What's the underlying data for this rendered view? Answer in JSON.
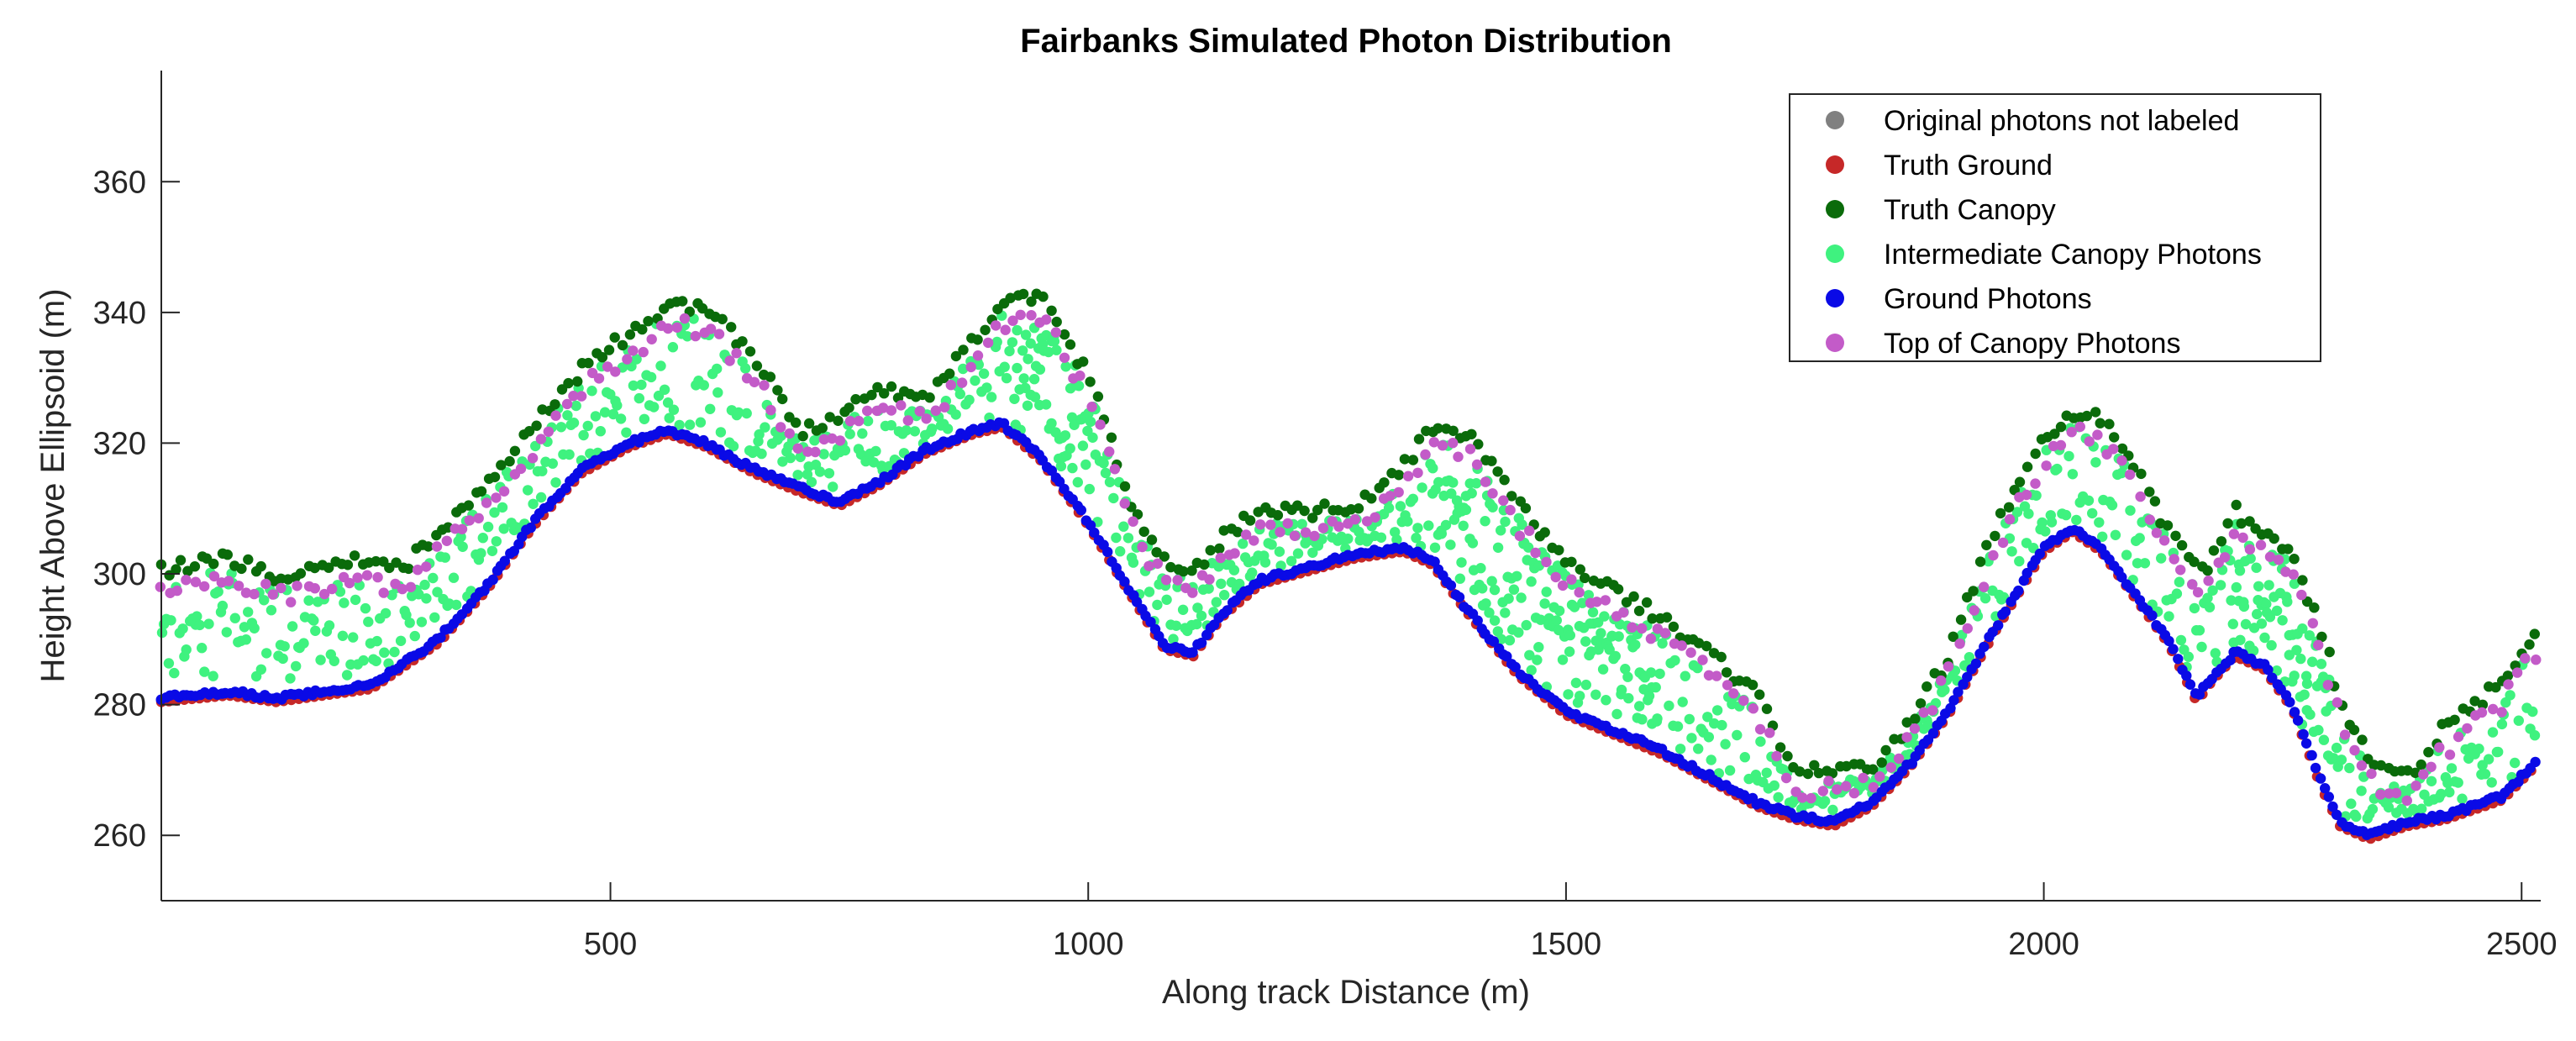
{
  "chart_data": {
    "type": "scatter",
    "title": "Fairbanks Simulated Photon Distribution",
    "xlabel": "Along track Distance (m)",
    "ylabel": "Height Above Ellipsoid (m)",
    "xlim": [
      30,
      2520
    ],
    "ylim": [
      250,
      377
    ],
    "xticks": [
      500,
      1000,
      1500,
      2000,
      2500
    ],
    "yticks": [
      260,
      280,
      300,
      320,
      340,
      360
    ],
    "grid": false,
    "legend_position": "top-right",
    "ground_profile": {
      "x": [
        30,
        100,
        150,
        200,
        250,
        280,
        320,
        370,
        420,
        470,
        520,
        560,
        600,
        650,
        700,
        740,
        780,
        830,
        880,
        910,
        950,
        1000,
        1050,
        1080,
        1110,
        1140,
        1180,
        1230,
        1280,
        1330,
        1360,
        1400,
        1450,
        1500,
        1550,
        1600,
        1650,
        1700,
        1740,
        1780,
        1820,
        1860,
        1900,
        1950,
        2000,
        2030,
        2060,
        2100,
        2130,
        2160,
        2175,
        2200,
        2230,
        2260,
        2290,
        2310,
        2340,
        2380,
        2420,
        2480,
        2520
      ],
      "y": [
        281,
        282,
        281,
        282,
        283,
        286,
        290,
        298,
        308,
        316,
        320,
        322,
        320,
        316,
        313,
        311,
        314,
        319,
        322,
        323,
        318,
        308,
        296,
        289,
        288,
        294,
        299,
        301,
        303,
        304,
        302,
        294,
        285,
        279,
        276,
        273,
        269,
        265,
        263,
        262,
        265,
        271,
        279,
        292,
        304,
        307,
        304,
        296,
        290,
        281,
        284,
        288,
        286,
        280,
        268,
        262,
        260,
        262,
        263,
        266,
        272
      ]
    },
    "canopy_top_profile": {
      "x": [
        30,
        100,
        150,
        200,
        250,
        280,
        320,
        370,
        420,
        470,
        520,
        560,
        600,
        650,
        700,
        740,
        780,
        830,
        880,
        910,
        950,
        1000,
        1050,
        1080,
        1110,
        1140,
        1180,
        1230,
        1280,
        1330,
        1360,
        1400,
        1450,
        1500,
        1550,
        1600,
        1650,
        1700,
        1740,
        1780,
        1820,
        1860,
        1900,
        1950,
        2000,
        2030,
        2060,
        2100,
        2130,
        2160,
        2175,
        2200,
        2230,
        2260,
        2290,
        2310,
        2340,
        2380,
        2420,
        2480,
        2520
      ],
      "y": [
        300,
        302,
        299,
        300,
        302,
        300,
        306,
        313,
        322,
        331,
        336,
        341,
        340,
        333,
        321,
        324,
        328,
        326,
        335,
        341,
        342,
        330,
        308,
        302,
        300,
        305,
        309,
        309,
        310,
        316,
        322,
        321,
        310,
        301,
        297,
        293,
        287,
        281,
        269,
        270,
        270,
        277,
        287,
        307,
        320,
        324,
        323,
        315,
        306,
        300,
        301,
        309,
        306,
        303,
        291,
        280,
        271,
        268,
        276,
        283,
        292
      ]
    },
    "series": [
      {
        "name": "Original photons not labeled",
        "color": "#808080",
        "marker": "circle"
      },
      {
        "name": "Truth Ground",
        "color": "#c62828",
        "marker": "circle"
      },
      {
        "name": "Truth Canopy",
        "color": "#0a6b0a",
        "marker": "circle"
      },
      {
        "name": "Intermediate Canopy Photons",
        "color": "#3ff27f",
        "marker": "circle"
      },
      {
        "name": "Ground Photons",
        "color": "#0a0ae6",
        "marker": "circle"
      },
      {
        "name": "Top of Canopy Photons",
        "color": "#c35bc8",
        "marker": "circle"
      }
    ]
  }
}
